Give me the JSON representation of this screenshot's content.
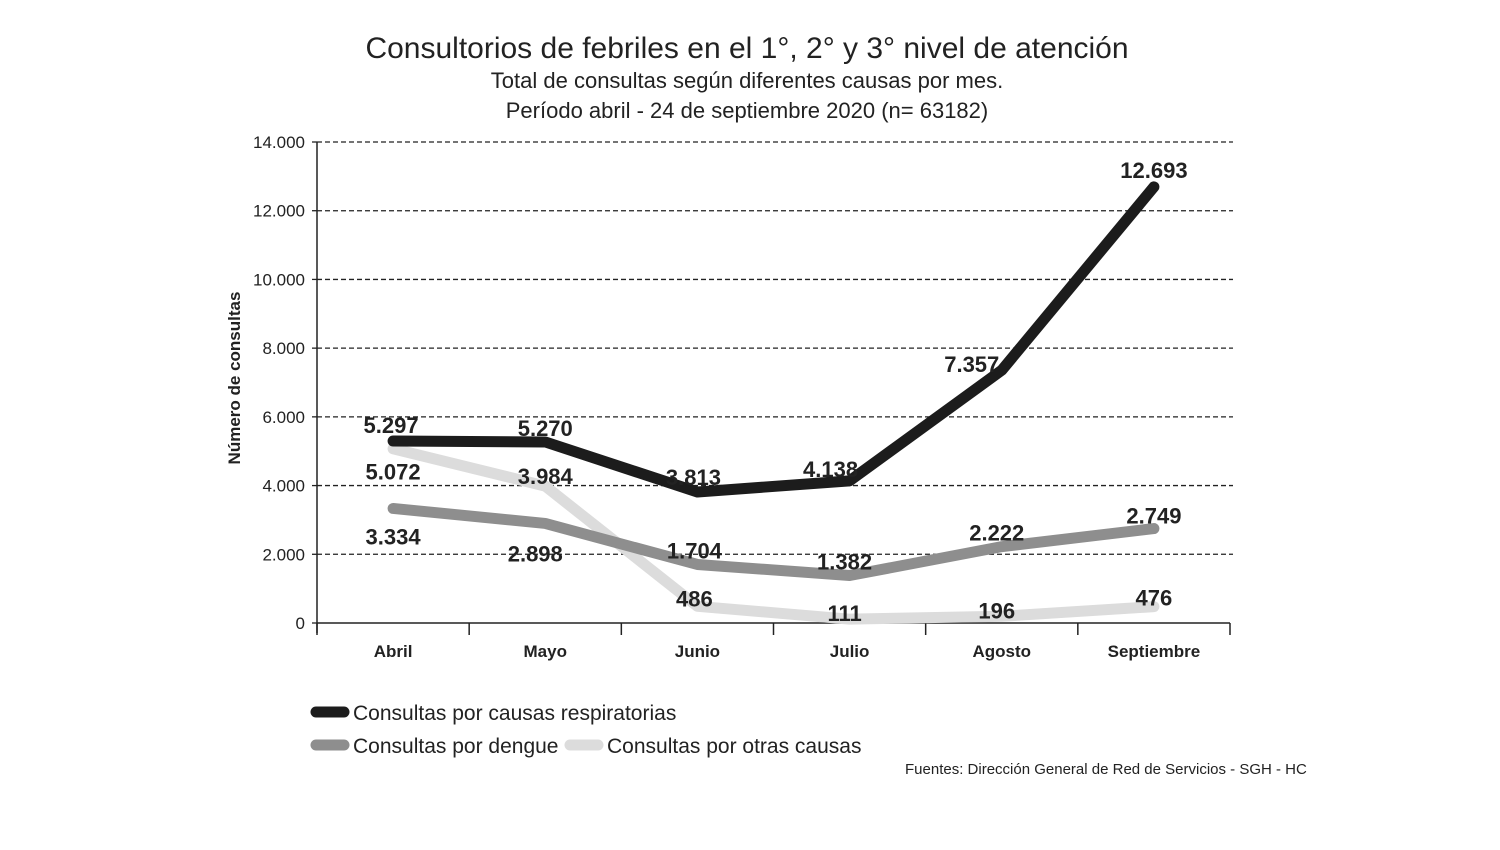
{
  "chart_data": {
    "type": "line",
    "title": "Consultorios de febriles en el 1°, 2° y 3° nivel de atención",
    "subtitle": [
      "Total de consultas según diferentes causas por mes.",
      "Período abril - 24 de septiembre 2020 (n= 63182)"
    ],
    "xlabel": "",
    "ylabel": "Número de consultas",
    "ylim": [
      0,
      14000
    ],
    "yticks": [
      0,
      2000,
      4000,
      6000,
      8000,
      10000,
      12000,
      14000
    ],
    "ytick_labels": [
      "0",
      "2.000",
      "4.000",
      "6.000",
      "8.000",
      "10.000",
      "12.000",
      "14.000"
    ],
    "grid": "horizontal dashed",
    "legend_position": "bottom-left",
    "categories": [
      "Abril",
      "Mayo",
      "Junio",
      "Julio",
      "Agosto",
      "Septiembre"
    ],
    "series": [
      {
        "name": "Consultas por causas respiratorias",
        "color": "#1c1c1c",
        "values": [
          5297,
          5270,
          3813,
          4138,
          7357,
          12693
        ],
        "labels": [
          "5.297",
          "5.270",
          "3.813",
          "4.138",
          "7.357",
          "12.693"
        ]
      },
      {
        "name": "Consultas por dengue",
        "color": "#8e8e8e",
        "values": [
          3334,
          2898,
          1704,
          1382,
          2222,
          2749
        ],
        "labels": [
          "3.334",
          "2.898",
          "1.704",
          "1.382",
          "2.222",
          "2.749"
        ]
      },
      {
        "name": "Consultas por otras causas",
        "color": "#dcdcdc",
        "values": [
          5072,
          3984,
          486,
          111,
          196,
          476
        ],
        "labels": [
          "5.072",
          "3.984",
          "486",
          "111",
          "196",
          "476"
        ]
      }
    ],
    "source": "Fuentes: Dirección General de Red de Servicios - SGH - HC"
  }
}
